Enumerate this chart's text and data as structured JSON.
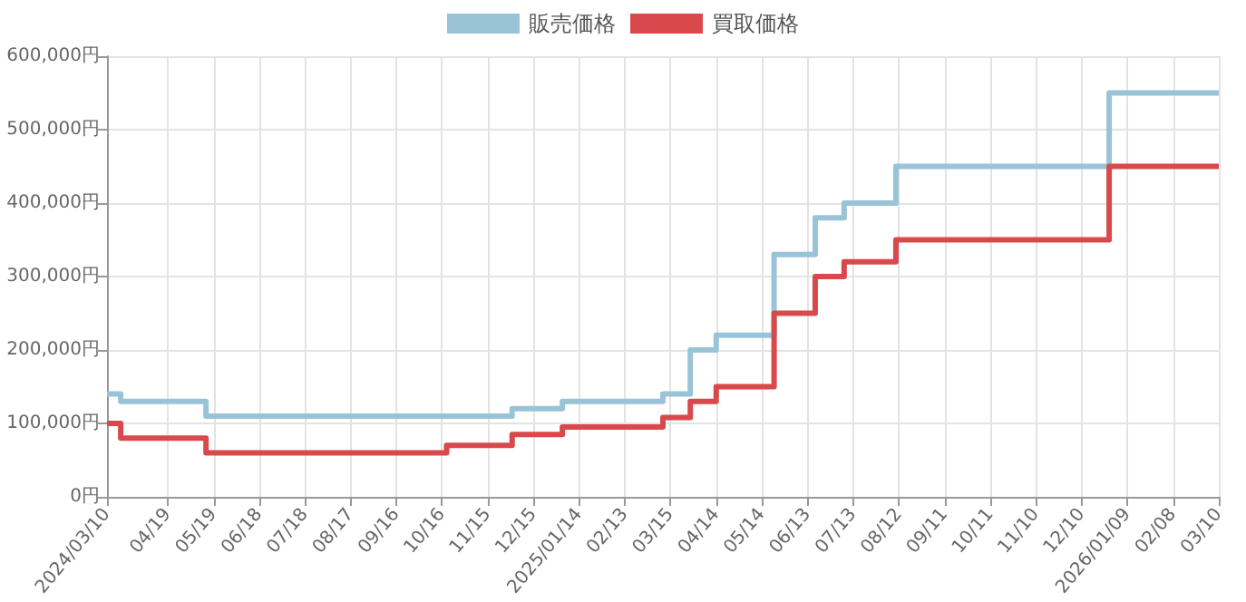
{
  "chart_data": {
    "type": "step",
    "series": [
      {
        "name": "販売価格",
        "color": "#99c4d8",
        "x": [
          "2024-03-10",
          "2024-03-19",
          "2024-05-14",
          "2024-12-01",
          "2025-01-03",
          "2025-03-10",
          "2025-03-28",
          "2025-04-14",
          "2025-05-22",
          "2025-06-18",
          "2025-07-07",
          "2025-08-10",
          "2025-12-28",
          "2026-03-10"
        ],
        "values": [
          140000,
          130000,
          110000,
          120000,
          130000,
          140000,
          200000,
          220000,
          330000,
          380000,
          400000,
          450000,
          550000,
          550000
        ]
      },
      {
        "name": "買取価格",
        "color": "#d9494b",
        "x": [
          "2024-03-10",
          "2024-03-19",
          "2024-05-14",
          "2024-10-19",
          "2024-12-01",
          "2025-01-03",
          "2025-03-10",
          "2025-03-28",
          "2025-04-14",
          "2025-05-22",
          "2025-06-18",
          "2025-07-07",
          "2025-08-10",
          "2025-12-28",
          "2026-03-10"
        ],
        "values": [
          100000,
          80000,
          60000,
          70000,
          85000,
          95000,
          108000,
          130000,
          150000,
          250000,
          300000,
          320000,
          350000,
          450000,
          450000
        ]
      }
    ],
    "xlim": [
      "2024-03-10",
      "2026-03-10"
    ],
    "xticks": [
      {
        "value": "2024-03-10",
        "label": "2024/03/10"
      },
      {
        "value": "2024-04-19",
        "label": "04/19"
      },
      {
        "value": "2024-05-19",
        "label": "05/19"
      },
      {
        "value": "2024-06-18",
        "label": "06/18"
      },
      {
        "value": "2024-07-18",
        "label": "07/18"
      },
      {
        "value": "2024-08-17",
        "label": "08/17"
      },
      {
        "value": "2024-09-16",
        "label": "09/16"
      },
      {
        "value": "2024-10-16",
        "label": "10/16"
      },
      {
        "value": "2024-11-15",
        "label": "11/15"
      },
      {
        "value": "2024-12-15",
        "label": "12/15"
      },
      {
        "value": "2025-01-14",
        "label": "2025/01/14"
      },
      {
        "value": "2025-02-13",
        "label": "02/13"
      },
      {
        "value": "2025-03-15",
        "label": "03/15"
      },
      {
        "value": "2025-04-14",
        "label": "04/14"
      },
      {
        "value": "2025-05-14",
        "label": "05/14"
      },
      {
        "value": "2025-06-13",
        "label": "06/13"
      },
      {
        "value": "2025-07-13",
        "label": "07/13"
      },
      {
        "value": "2025-08-12",
        "label": "08/12"
      },
      {
        "value": "2025-09-11",
        "label": "09/11"
      },
      {
        "value": "2025-10-11",
        "label": "10/11"
      },
      {
        "value": "2025-11-10",
        "label": "11/10"
      },
      {
        "value": "2025-12-10",
        "label": "12/10"
      },
      {
        "value": "2026-01-09",
        "label": "2026/01/09"
      },
      {
        "value": "2026-02-08",
        "label": "02/08"
      },
      {
        "value": "2026-03-10",
        "label": "03/10"
      }
    ],
    "ylim": [
      0,
      600000
    ],
    "yticks": [
      {
        "value": 0,
        "label": "0円"
      },
      {
        "value": 100000,
        "label": "100,000円"
      },
      {
        "value": 200000,
        "label": "200,000円"
      },
      {
        "value": 300000,
        "label": "300,000円"
      },
      {
        "value": 400000,
        "label": "400,000円"
      },
      {
        "value": 500000,
        "label": "500,000円"
      },
      {
        "value": 600000,
        "label": "600,000円"
      }
    ],
    "grid": true,
    "legend": "top",
    "marker": "none",
    "line_style": "solid"
  }
}
